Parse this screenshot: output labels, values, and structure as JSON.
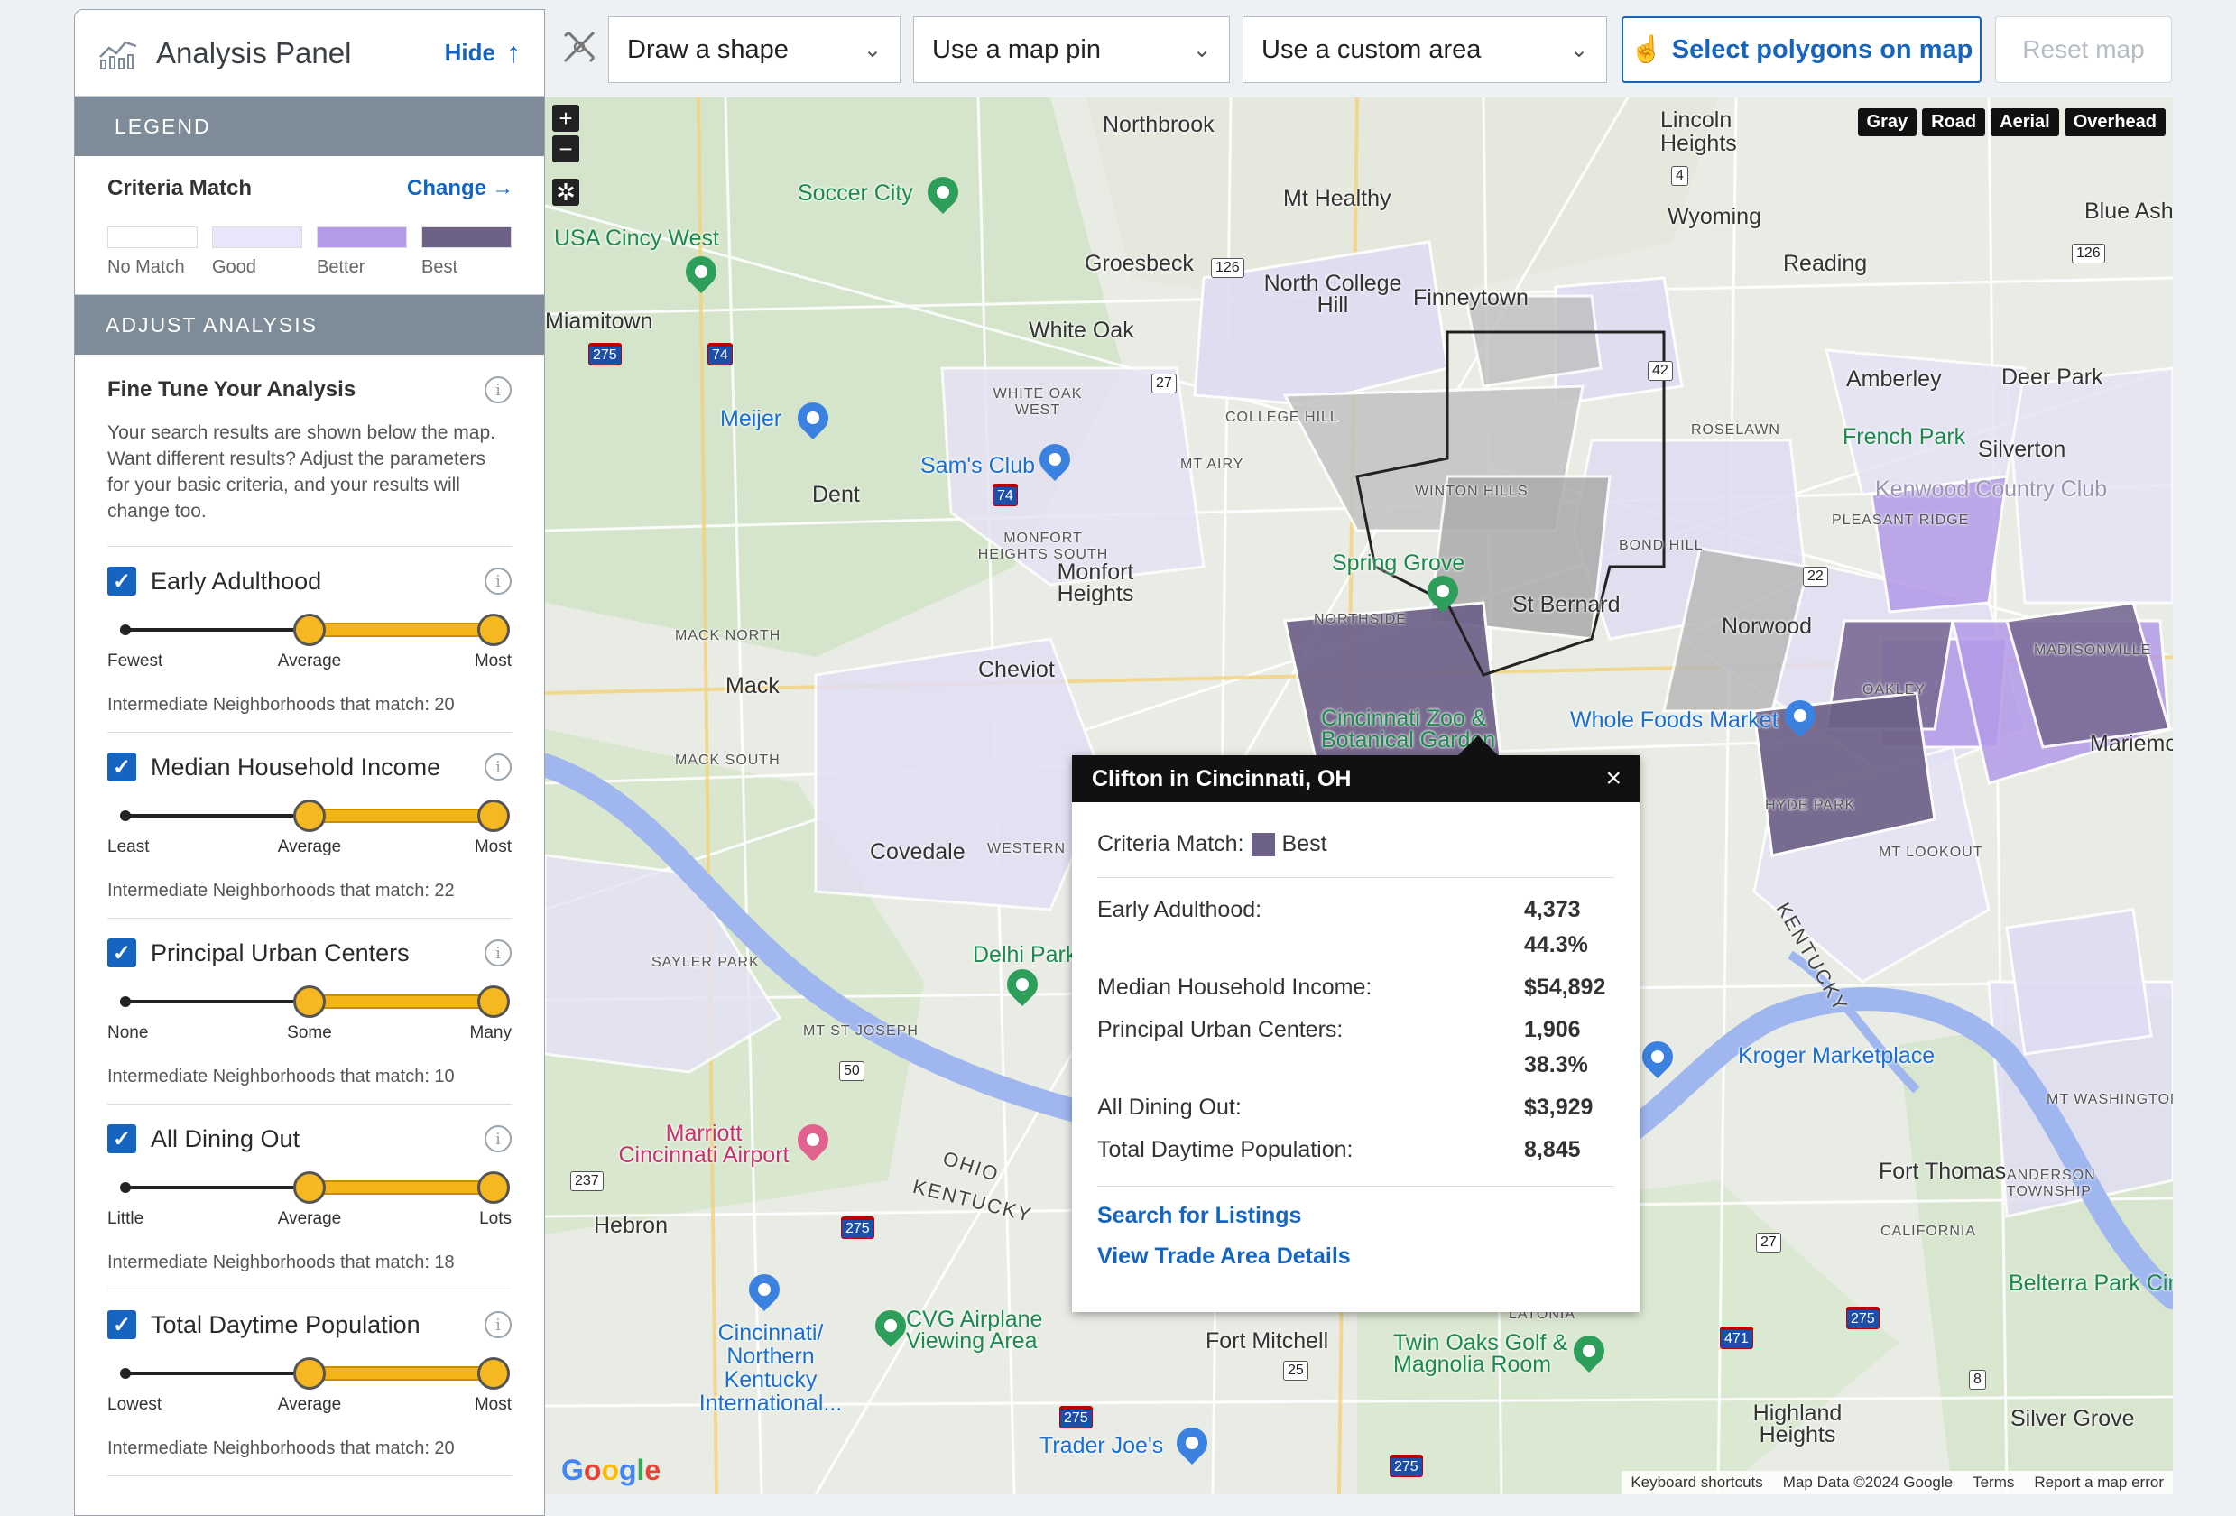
{
  "panel": {
    "title": "Analysis Panel",
    "hide_label": "Hide",
    "legend_header": "LEGEND",
    "criteria_match_title": "Criteria Match",
    "change_label": "Change",
    "legend": [
      {
        "label": "No Match",
        "color": "#ffffff"
      },
      {
        "label": "Good",
        "color": "#e9e5fb"
      },
      {
        "label": "Better",
        "color": "#b49ae8"
      },
      {
        "label": "Best",
        "color": "#6e6188"
      }
    ],
    "adjust_header": "ADJUST ANALYSIS",
    "fine_tune_title": "Fine Tune Your Analysis",
    "fine_tune_desc": "Your search results are shown below the map. Want different results? Adjust the parameters for your basic criteria, and your results will change too.",
    "criteria": [
      {
        "name": "Early Adulthood",
        "low": "Fewest",
        "mid": "Average",
        "high": "Most",
        "range": [
          0.5,
          1.0
        ],
        "match": "Intermediate Neighborhoods that match: 20"
      },
      {
        "name": "Median Household Income",
        "low": "Least",
        "mid": "Average",
        "high": "Most",
        "range": [
          0.5,
          1.0
        ],
        "match": "Intermediate Neighborhoods that match: 22"
      },
      {
        "name": "Principal Urban Centers",
        "low": "None",
        "mid": "Some",
        "high": "Many",
        "range": [
          0.5,
          1.0
        ],
        "match": "Intermediate Neighborhoods that match: 10"
      },
      {
        "name": "All Dining Out",
        "low": "Little",
        "mid": "Average",
        "high": "Lots",
        "range": [
          0.5,
          1.0
        ],
        "match": "Intermediate Neighborhoods that match: 18"
      },
      {
        "name": "Total Daytime Population",
        "low": "Lowest",
        "mid": "Average",
        "high": "Most",
        "range": [
          0.5,
          1.0
        ],
        "match": "Intermediate Neighborhoods that match: 20"
      }
    ]
  },
  "toolbar": {
    "draw_shape": "Draw a shape",
    "map_pin": "Use a map pin",
    "custom_area": "Use a custom area",
    "select_polygons": "Select polygons on map",
    "reset_map": "Reset map"
  },
  "map": {
    "map_types": [
      "Gray",
      "Road",
      "Aerial",
      "Overhead"
    ],
    "places": [
      "Northbrook",
      "Lincoln Heights",
      "Mt Healthy",
      "Wyoming",
      "Blue Ash",
      "Soccer City",
      "USA Cincy West",
      "Groesbeck",
      "North College Hill",
      "Finneytown",
      "Reading",
      "White Oak",
      "Amberley",
      "Deer Park",
      "Meijer",
      "Sam's Club",
      "Dent",
      "Silverton",
      "Monfort Heights",
      "Spring Grove",
      "St Bernard",
      "Norwood",
      "Mack",
      "Cheviot",
      "Covedale",
      "Whole Foods Market",
      "Delhi Park",
      "Cincinnati Zoo & Botanical Garden",
      "Marriott Cincinnati Airport",
      "Hebron",
      "Kroger Marketplace",
      "Fort Thomas",
      "Fort Mitchell",
      "Twin Oaks Golf & Magnolia Room",
      "Highland Heights",
      "Silver Grove",
      "Cincinnati/ Northern Kentucky International...",
      "CVG Airplane Viewing Area",
      "Trader Joe's",
      "Belterra Park Cinci",
      "Mariemont",
      "French Park",
      "Kenwood Country Club",
      "Miamitown"
    ],
    "small_labels": [
      "COLLEGE HILL",
      "MT AIRY",
      "WHITE OAK WEST",
      "MONFORT HEIGHTS SOUTH",
      "MACK NORTH",
      "MACK SOUTH",
      "WINTON HILLS",
      "NORTHSIDE",
      "BOND HILL",
      "ROSELAWN",
      "PLEASANT RIDGE",
      "MADISONVILLE",
      "OAKLEY",
      "HYDE PARK",
      "MT LOOKOUT",
      "SAYLER PARK",
      "MT ST JOSEPH",
      "WESTERN",
      "ANDERSON TOWNSHIP",
      "CALIFORNIA",
      "MT WASHINGTON",
      "LATONIA"
    ],
    "rivers": [
      "OHIO",
      "KENTUCKY"
    ],
    "attribution": [
      "Keyboard shortcuts",
      "Map Data ©2024 Google",
      "Terms",
      "Report a map error"
    ],
    "google": "Google"
  },
  "popup": {
    "title": "Clifton in Cincinnati, OH",
    "criteria_match_label": "Criteria Match:",
    "criteria_match_value": "Best",
    "rows": [
      {
        "label": "Early Adulthood:",
        "value": "4,373",
        "value2": "44.3%"
      },
      {
        "label": "Median Household Income:",
        "value": "$54,892",
        "value2": ""
      },
      {
        "label": "Principal Urban Centers:",
        "value": "1,906",
        "value2": "38.3%"
      },
      {
        "label": "All Dining Out:",
        "value": "$3,929",
        "value2": ""
      },
      {
        "label": "Total Daytime Population:",
        "value": "8,845",
        "value2": ""
      }
    ],
    "links": [
      "Search for Listings",
      "View Trade Area Details"
    ]
  }
}
